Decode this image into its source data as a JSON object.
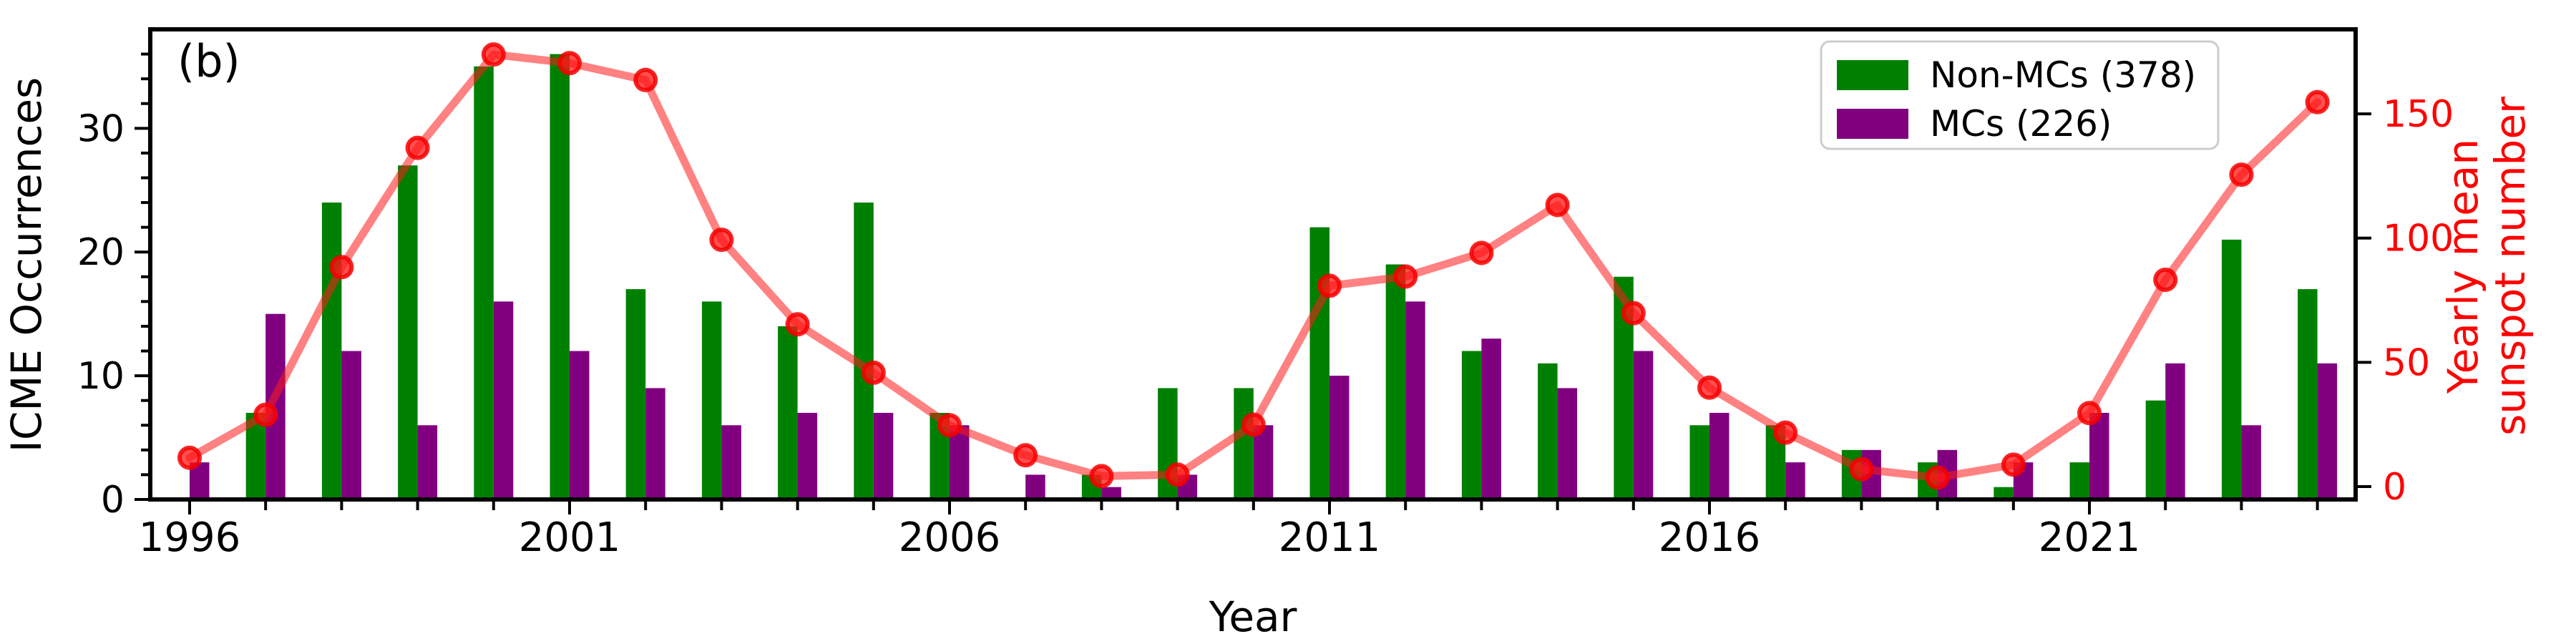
{
  "panel_label": "(b)",
  "axes": {
    "xlabel": "Year",
    "ylabel_left": "ICME Occurrences",
    "ylabel_right_line1": "Yearly mean",
    "ylabel_right_line2": "sunspot number",
    "left_ticks": [
      0,
      10,
      20,
      30
    ],
    "left_minor_step": 2,
    "left_ylim": [
      0,
      38
    ],
    "right_ticks": [
      0,
      50,
      100,
      150
    ],
    "right_ylim": [
      -5.2,
      184
    ],
    "x_labeled_ticks": [
      1996,
      2001,
      2006,
      2011,
      2016,
      2021
    ],
    "grid": false
  },
  "legend": {
    "position": "upper right",
    "items": [
      {
        "label": "Non-MCs (378)",
        "color": "#008000"
      },
      {
        "label": "MCs (226)",
        "color": "#800080"
      }
    ]
  },
  "colors": {
    "non_mcs": "#008000",
    "mcs": "#800080",
    "sunspot_line": "rgba(255,25,25,0.55)",
    "sunspot_marker_fill": "rgba(255,20,20,0.75)",
    "sunspot_marker_edge": "rgba(245,0,0,0.85)",
    "right_axis": "#ff0000"
  },
  "chart_data": {
    "type": "bar",
    "title": "",
    "xlabel": "Year",
    "ylabel": "ICME Occurrences",
    "ylabel_right": "Yearly mean sunspot number",
    "x": [
      1996,
      1997,
      1998,
      1999,
      2000,
      2001,
      2002,
      2003,
      2004,
      2005,
      2006,
      2007,
      2008,
      2009,
      2010,
      2011,
      2012,
      2013,
      2014,
      2015,
      2016,
      2017,
      2018,
      2019,
      2020,
      2021,
      2022,
      2023,
      2024
    ],
    "series": [
      {
        "name": "Non-MCs (378)",
        "type": "bar",
        "values": [
          0,
          7,
          24,
          27,
          35,
          36,
          17,
          16,
          14,
          24,
          7,
          0,
          2,
          9,
          9,
          22,
          19,
          12,
          11,
          18,
          6,
          6,
          4,
          3,
          1,
          3,
          8,
          21,
          17
        ]
      },
      {
        "name": "MCs (226)",
        "type": "bar",
        "values": [
          3,
          15,
          12,
          6,
          16,
          12,
          9,
          6,
          7,
          7,
          6,
          2,
          1,
          2,
          6,
          10,
          16,
          13,
          9,
          12,
          7,
          3,
          4,
          4,
          3,
          7,
          11,
          6,
          11
        ]
      },
      {
        "name": "Yearly mean sunspot number",
        "type": "line",
        "values": [
          11.6,
          28.9,
          88.3,
          136.3,
          173.9,
          170.4,
          163.6,
          99.3,
          65.3,
          45.8,
          24.7,
          12.6,
          4.2,
          4.8,
          24.9,
          80.8,
          84.5,
          94.0,
          113.3,
          69.8,
          39.8,
          21.7,
          7.0,
          3.6,
          8.8,
          29.6,
          83.2,
          125.5,
          154.7
        ]
      }
    ],
    "ylim_left": [
      0,
      38
    ],
    "ylim_right": [
      -5.2,
      184
    ],
    "legend_position": "upper right",
    "grid": false
  }
}
